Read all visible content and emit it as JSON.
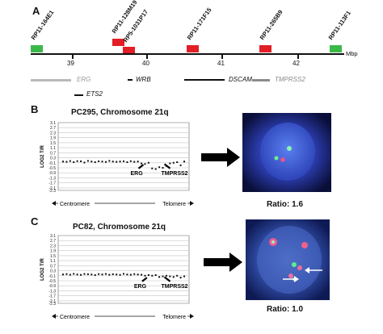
{
  "panel_a": {
    "letter": "A",
    "axis_unit": "Mbp",
    "axis_ticks": [
      "39",
      "40",
      "41",
      "42"
    ],
    "clones": [
      {
        "label": "RP11-164E1",
        "color": "#3cb84a"
      },
      {
        "label": "RP11-128M19",
        "color": "#e21e26"
      },
      {
        "label": "RP5-1031P17",
        "color": "#e21e26"
      },
      {
        "label": "RP11-171F15",
        "color": "#e21e26"
      },
      {
        "label": "RP11-265B9",
        "color": "#e21e26"
      },
      {
        "label": "RP11-113F1",
        "color": "#3cb84a"
      }
    ],
    "genes": [
      {
        "label": "ERG",
        "color": "#b9b9b9"
      },
      {
        "label": "ETS2",
        "color": "#111111"
      },
      {
        "label": "WRB",
        "color": "#111111"
      },
      {
        "label": "DSCAM",
        "color": "#111111"
      },
      {
        "label": "TMPRSS2",
        "color": "#8c8c8c"
      }
    ]
  },
  "panel_b": {
    "letter": "B",
    "title": "PC295, Chromosome 21q",
    "ratio_text": "Ratio: 1.6"
  },
  "panel_c": {
    "letter": "C",
    "title": "PC82, Chromosome 21q",
    "ratio_text": "Ratio: 1.0"
  },
  "chart_data": [
    {
      "type": "scatter",
      "title": "PC295, Chromosome 21q",
      "ylabel": "LOG2 T/R",
      "xlabel_left": "Centromere",
      "xlabel_right": "Telomere",
      "ylim": [
        -2.3,
        3.1
      ],
      "yticks": [
        "3.1",
        "2.7",
        "2.3",
        "1.9",
        "1.5",
        "1.1",
        "0.7",
        "0.3",
        "-0.1",
        "-0.5",
        "-0.9",
        "-1.3",
        "-1.7",
        "-2.1",
        "-2.3"
      ],
      "annotations": [
        "ERG",
        "TMPRSS2"
      ],
      "x": [
        0,
        1,
        2,
        3,
        4,
        5,
        6,
        7,
        8,
        9,
        10,
        11,
        12,
        13,
        14,
        15,
        16,
        17,
        18,
        19,
        20,
        21,
        22,
        23,
        24,
        25,
        26,
        27,
        28,
        29,
        30,
        31,
        32,
        33,
        34
      ],
      "y": [
        0.0,
        -0.02,
        0.04,
        -0.05,
        0.03,
        0.02,
        -0.08,
        0.05,
        0.0,
        -0.05,
        0.02,
        0.0,
        -0.03,
        0.05,
        0.0,
        -0.02,
        0.0,
        0.02,
        -0.05,
        0.03,
        -0.02,
        0.0,
        -0.15,
        -0.2,
        -0.1,
        -0.55,
        -0.6,
        -0.45,
        -0.5,
        -0.35,
        -0.15,
        -0.1,
        -0.05,
        -0.3,
        0.0
      ]
    },
    {
      "type": "scatter",
      "title": "PC82, Chromosome 21q",
      "ylabel": "LOG2 T/R",
      "xlabel_left": "Centromere",
      "xlabel_right": "Telomere",
      "ylim": [
        -2.3,
        3.1
      ],
      "yticks": [
        "3.1",
        "2.7",
        "2.3",
        "1.9",
        "1.5",
        "1.1",
        "0.7",
        "0.3",
        "-0.1",
        "-0.5",
        "-0.9",
        "-1.3",
        "-1.7",
        "-2.1",
        "-2.3"
      ],
      "annotations": [
        "ERG",
        "TMPRSS2"
      ],
      "x": [
        0,
        1,
        2,
        3,
        4,
        5,
        6,
        7,
        8,
        9,
        10,
        11,
        12,
        13,
        14,
        15,
        16,
        17,
        18,
        19,
        20,
        21,
        22,
        23,
        24,
        25,
        26,
        27,
        28,
        29,
        30,
        31,
        32,
        33,
        34
      ],
      "y": [
        0.0,
        0.03,
        -0.02,
        0.05,
        0.0,
        -0.03,
        0.04,
        0.02,
        0.0,
        -0.05,
        0.03,
        0.0,
        0.04,
        -0.02,
        0.02,
        0.0,
        -0.03,
        0.05,
        0.0,
        -0.02,
        0.03,
        0.0,
        -0.02,
        -0.1,
        -0.05,
        -0.1,
        -0.05,
        -0.2,
        -0.15,
        -0.1,
        -0.15,
        -0.2,
        -0.1,
        -0.25,
        -0.15
      ]
    }
  ]
}
